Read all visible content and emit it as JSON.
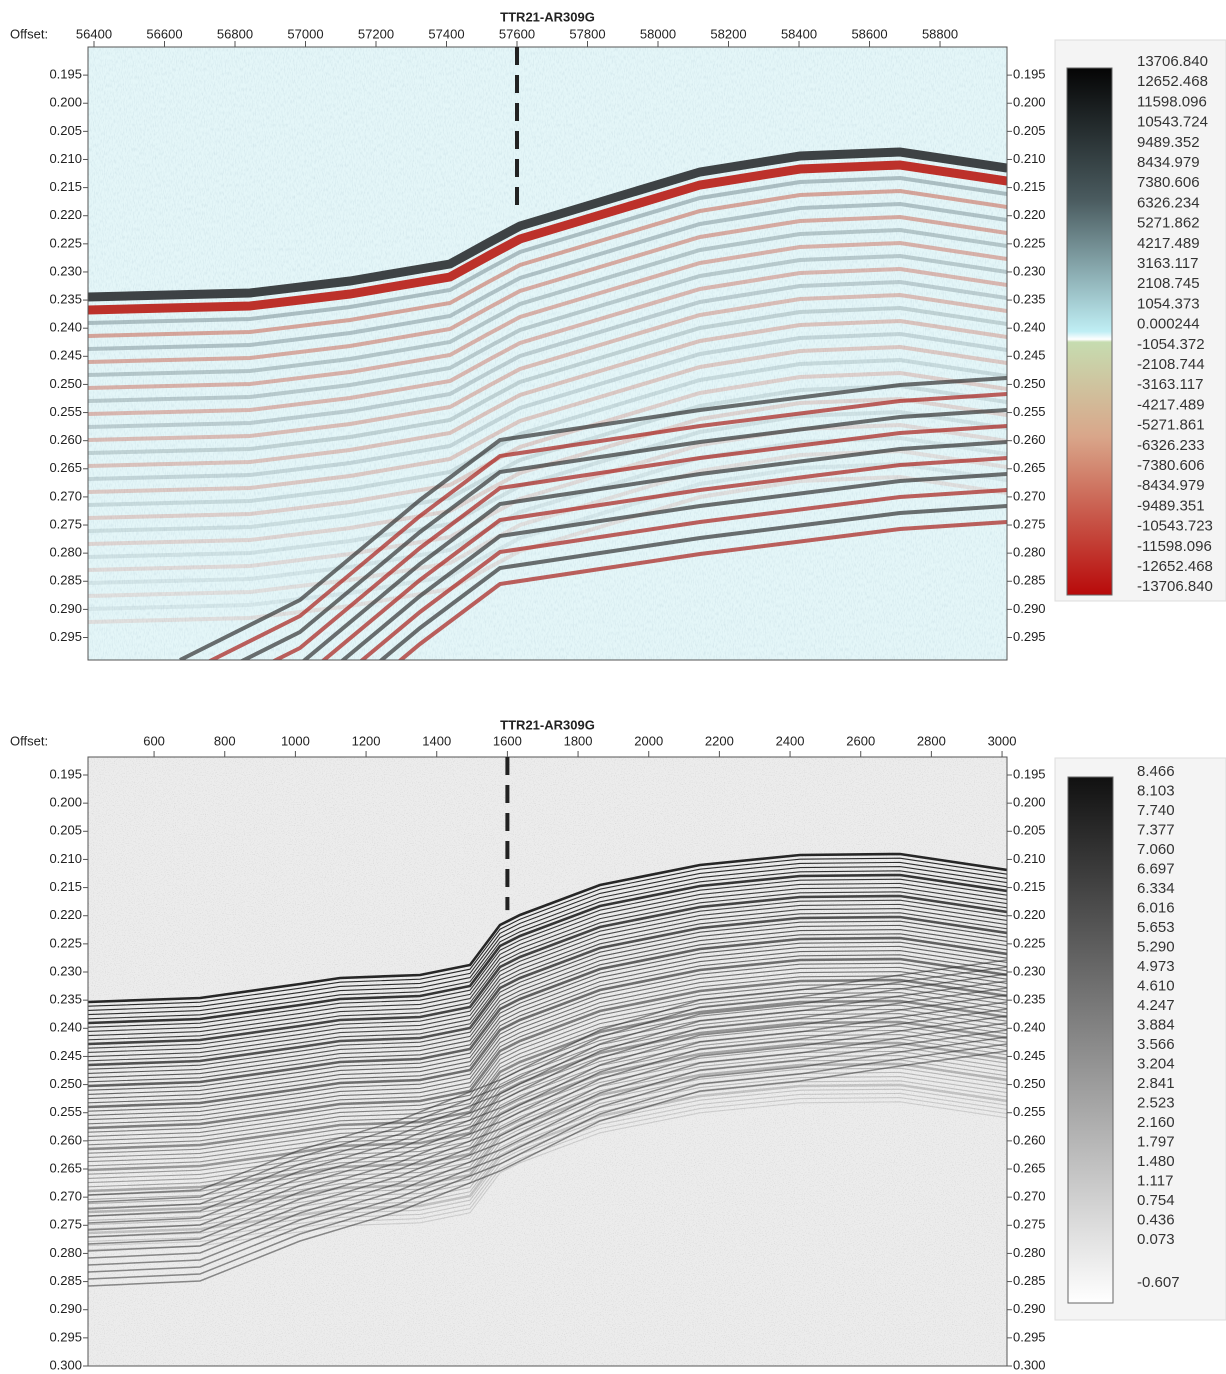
{
  "chart_data": [
    {
      "type": "seismic",
      "title": "TTR21-AR309G",
      "x_label": "Offset:",
      "xlim": [
        56383,
        58990
      ],
      "xticks": [
        56400,
        56600,
        56800,
        57000,
        57200,
        57400,
        57600,
        57800,
        58000,
        58200,
        58400,
        58600,
        58800
      ],
      "ylim": [
        0.19,
        0.299
      ],
      "yticks": [
        0.195,
        {
          "value": 0.2,
          "label": "0.200"
        },
        0.205,
        {
          "value": 0.21,
          "label": "0.210"
        },
        0.215,
        {
          "value": 0.22,
          "label": "0.220"
        },
        0.225,
        {
          "value": 0.23,
          "label": "0.230"
        },
        0.235,
        {
          "value": 0.24,
          "label": "0.240"
        },
        0.245,
        {
          "value": 0.25,
          "label": "0.250"
        },
        0.255,
        {
          "value": 0.26,
          "label": "0.260"
        },
        0.265,
        {
          "value": 0.27,
          "label": "0.270"
        },
        0.275,
        {
          "value": 0.28,
          "label": "0.280"
        },
        0.285,
        {
          "value": 0.29,
          "label": "0.290"
        },
        0.295
      ],
      "marker_x": 57600,
      "marker_y_end": 0.219,
      "colorbar": [
        {
          "value": 13706.84,
          "label": "13706.840"
        },
        12652.468,
        11598.096,
        10543.724,
        9489.352,
        8434.979,
        7380.606,
        6326.234,
        5271.862,
        4217.489,
        3163.117,
        2108.745,
        1054.373,
        0.000244,
        -1054.372,
        -2108.744,
        -3163.117,
        -4217.489,
        -5271.861,
        -6326.233,
        -7380.606,
        -8434.979,
        -9489.351,
        -10543.723,
        -11598.096,
        -12652.468,
        {
          "value": -13706.84,
          "label": "-13706.840"
        }
      ]
    },
    {
      "type": "seismic",
      "title": "TTR21-AR309G",
      "x_label": "Offset:",
      "xlim": [
        413,
        3014
      ],
      "xticks": [
        600,
        800,
        1000,
        1200,
        1400,
        1600,
        1800,
        2000,
        2200,
        2400,
        2600,
        2800,
        3000
      ],
      "ylim": [
        0.1918,
        0.3
      ],
      "yticks": [
        0.195,
        {
          "value": 0.2,
          "label": "0.200"
        },
        0.205,
        {
          "value": 0.21,
          "label": "0.210"
        },
        0.215,
        {
          "value": 0.22,
          "label": "0.220"
        },
        0.225,
        {
          "value": 0.23,
          "label": "0.230"
        },
        0.235,
        {
          "value": 0.24,
          "label": "0.240"
        },
        0.245,
        {
          "value": 0.25,
          "label": "0.250"
        },
        0.255,
        {
          "value": 0.26,
          "label": "0.260"
        },
        0.265,
        {
          "value": 0.27,
          "label": "0.270"
        },
        0.275,
        {
          "value": 0.28,
          "label": "0.280"
        },
        0.285,
        {
          "value": 0.29,
          "label": "0.290"
        },
        0.295,
        {
          "value": 0.3,
          "label": "0.300"
        }
      ],
      "marker_x": 1600,
      "marker_y_end": 0.219,
      "colorbar": [
        8.466,
        8.103,
        {
          "value": 7.74,
          "label": "7.740"
        },
        7.377,
        {
          "value": 7.06,
          "label": "7.060"
        },
        6.697,
        6.334,
        6.016,
        5.653,
        {
          "value": 5.29,
          "label": "5.290"
        },
        4.973,
        {
          "value": 4.61,
          "label": "4.610"
        },
        4.247,
        3.884,
        3.566,
        3.204,
        2.841,
        2.523,
        {
          "value": 2.16,
          "label": "2.160"
        },
        1.797,
        {
          "value": 1.48,
          "label": "1.480"
        },
        1.117,
        0.754,
        0.436,
        0.073,
        -0.607
      ]
    }
  ]
}
